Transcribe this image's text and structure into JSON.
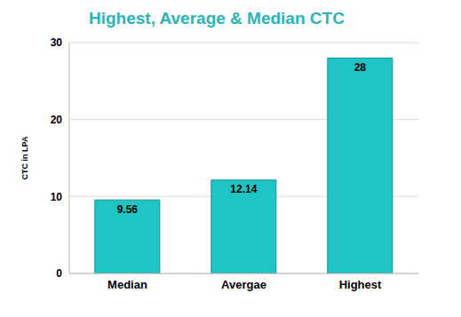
{
  "chart_data": {
    "type": "bar",
    "title": "Highest, Average & Median CTC",
    "y_label": "CTC in LPA",
    "categories": [
      "Median",
      "Avergae",
      "Highest"
    ],
    "values": [
      9.56,
      12.14,
      28
    ],
    "color": "#1fc4c4",
    "ylim": [
      0,
      30
    ],
    "yticks": [
      0,
      10,
      20,
      30
    ],
    "grid": true,
    "data_labels": true
  }
}
